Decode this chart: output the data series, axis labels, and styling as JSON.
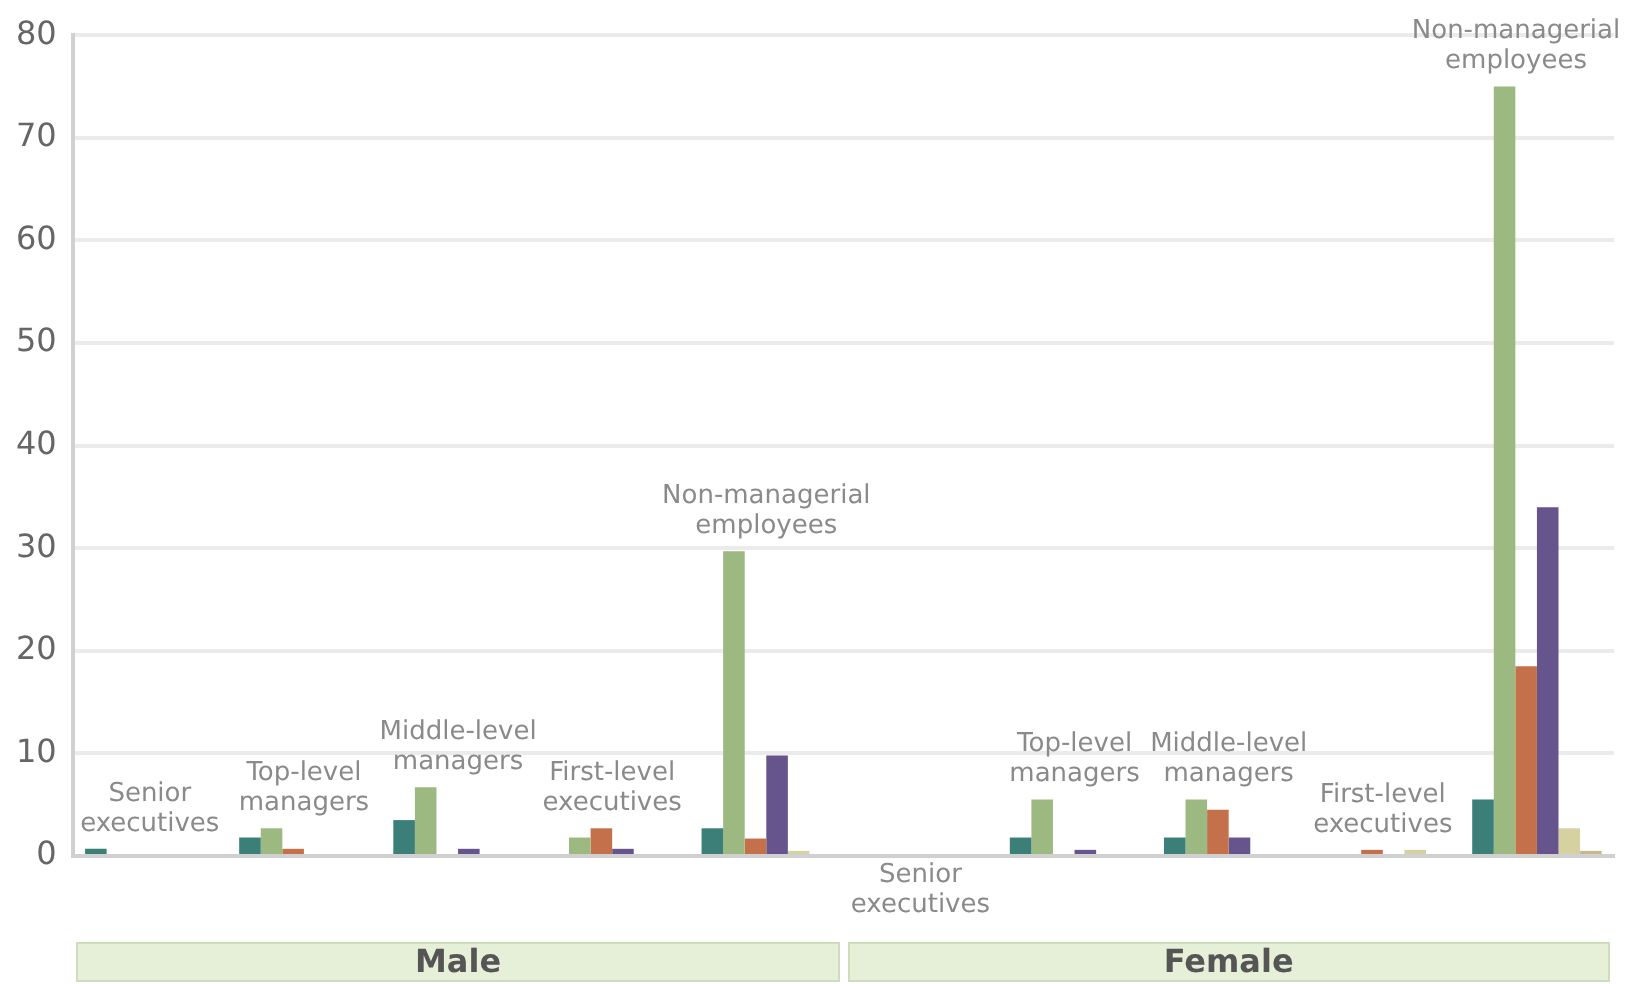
{
  "chart_data": {
    "type": "bar",
    "categories": [
      "Senior executives",
      "Top-level managers",
      "Middle-level managers",
      "First-level executives",
      "Non-managerial employees",
      "Senior executives",
      "Top-level managers",
      "Middle-level managers",
      "First-level executives",
      "Non-managerial employees"
    ],
    "series": [
      {
        "color": "#3b7f78",
        "values": [
          0.7,
          1.8,
          3.5,
          0,
          2.7,
          0,
          1.8,
          1.8,
          0,
          5.5
        ]
      },
      {
        "color": "#9cb982",
        "values": [
          0,
          2.7,
          6.7,
          1.8,
          29.7,
          0,
          5.5,
          5.5,
          0,
          75
        ]
      },
      {
        "color": "#c4704a",
        "values": [
          0,
          0.7,
          0,
          2.7,
          1.7,
          0,
          0,
          4.5,
          0.6,
          18.5
        ]
      },
      {
        "color": "#66558c",
        "values": [
          0,
          0,
          0.7,
          0.7,
          9.8,
          0,
          0.6,
          1.8,
          0,
          34
        ]
      },
      {
        "color": "#d6d1a0",
        "values": [
          0,
          0,
          0,
          0,
          0.5,
          0,
          0,
          0,
          0.6,
          2.7
        ]
      },
      {
        "color": "#c9b98a",
        "values": [
          0,
          0,
          0,
          0,
          0,
          0,
          0,
          0,
          0,
          0.5
        ]
      }
    ],
    "annotations": [
      "Male",
      "Female"
    ],
    "ylim": [
      0,
      80
    ],
    "yticks": [
      0,
      10,
      20,
      30,
      40,
      50,
      60,
      70,
      80
    ],
    "grid": "y",
    "legend": false
  }
}
